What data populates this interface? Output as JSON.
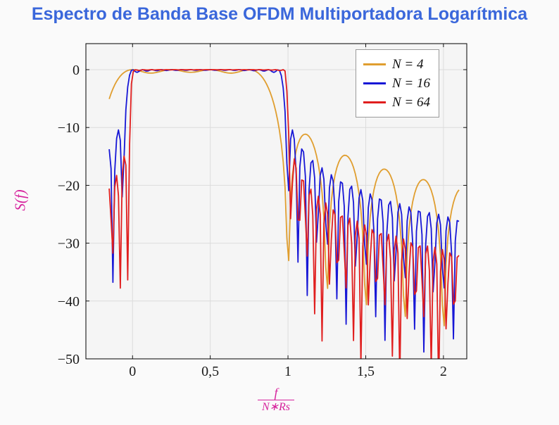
{
  "chart_data": {
    "type": "line",
    "title": "Espectro de Banda Base OFDM Multiportadora Logarítmica",
    "title_color": "#3A67DB",
    "ylabel": "S(f)",
    "xlabel": {
      "numerator": "f",
      "denominator": "N∗Rs"
    },
    "axis_label_color": "#D6219C",
    "xlim": [
      -0.3,
      2.15
    ],
    "ylim": [
      -50,
      4.5
    ],
    "xticks": [
      {
        "v": 0,
        "label": "0"
      },
      {
        "v": 0.5,
        "label": "0,5"
      },
      {
        "v": 1,
        "label": "1"
      },
      {
        "v": 1.5,
        "label": "1,5"
      },
      {
        "v": 2,
        "label": "2"
      }
    ],
    "yticks": [
      {
        "v": 0,
        "label": "0"
      },
      {
        "v": -10,
        "label": "−10"
      },
      {
        "v": -20,
        "label": "−20"
      },
      {
        "v": -30,
        "label": "−30"
      },
      {
        "v": -40,
        "label": "−40"
      },
      {
        "v": -50,
        "label": "−50"
      }
    ],
    "grid": true,
    "legend": {
      "position": "top-right"
    },
    "model": "S(u) = 10*log10( sum_{k=0..N-1} sinc^2(N*u - k) ), sinc(x)=sin(pi*x)/(pi*x), u = f/(N*Rs); passband 0 dB over 0<=u<=1, first sidelobe about -13 dB past u=1, sidelobes decay to about -21 dB (N=4), -24 dB (N=16), -30 dB and deep nulls below -50 dB (N=64) near u=2",
    "domain": [
      -0.15,
      2.1
    ],
    "samples": 190,
    "series": [
      {
        "name": "N = 4",
        "N": 4,
        "color": "#E09E2F"
      },
      {
        "name": "N = 16",
        "N": 16,
        "color": "#1717D6"
      },
      {
        "name": "N = 64",
        "N": 64,
        "color": "#E01E1E"
      }
    ]
  }
}
